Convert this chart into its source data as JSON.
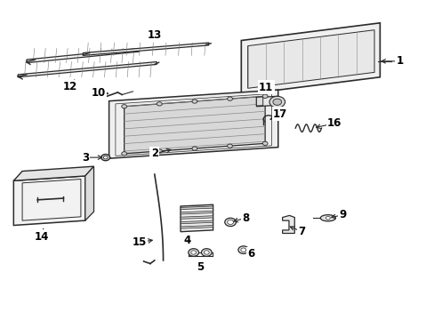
{
  "bg_color": "#ffffff",
  "line_color": "#2a2a2a",
  "text_color": "#000000",
  "figsize": [
    4.89,
    3.6
  ],
  "dpi": 100,
  "label_fontsize": 8.5
}
